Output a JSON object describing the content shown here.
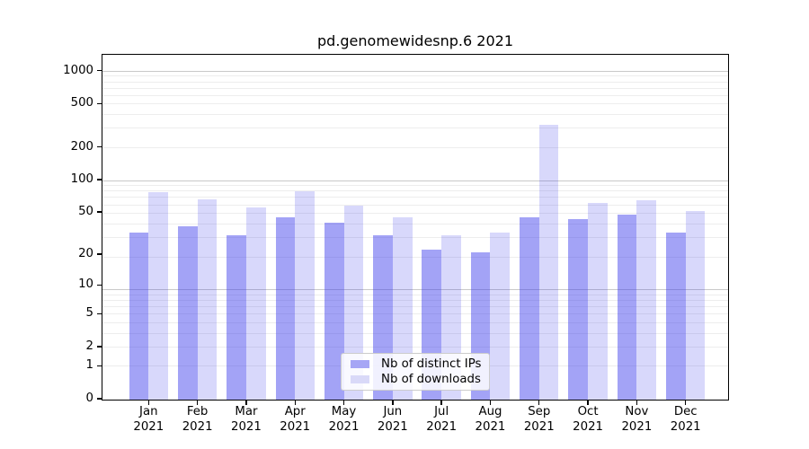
{
  "title": "pd.genomewidesnp.6 2021",
  "chart_data": {
    "type": "bar",
    "months": [
      "Jan",
      "Feb",
      "Mar",
      "Apr",
      "May",
      "Jun",
      "Jul",
      "Aug",
      "Sep",
      "Oct",
      "Nov",
      "Dec"
    ],
    "year": "2021",
    "categories": [
      "Jan 2021",
      "Feb 2021",
      "Mar 2021",
      "Apr 2021",
      "May 2021",
      "Jun 2021",
      "Jul 2021",
      "Aug 2021",
      "Sep 2021",
      "Oct 2021",
      "Nov 2021",
      "Dec 2021"
    ],
    "series": [
      {
        "name": "Nb of distinct IPs",
        "color": "#a6a6f5",
        "rgba": "rgba(60,60,235,0.47)",
        "values": [
          32,
          37,
          30,
          45,
          40,
          30,
          22,
          21,
          45,
          43,
          47,
          32
        ]
      },
      {
        "name": "Nb of downloads",
        "color": "#d9d9f8",
        "rgba": "rgba(60,60,235,0.20)",
        "values": [
          76,
          65,
          55,
          78,
          57,
          45,
          30,
          32,
          318,
          61,
          64,
          51
        ]
      }
    ],
    "yscale": "log10(value+1)",
    "ytick_labels": [
      0,
      1,
      2,
      5,
      10,
      20,
      50,
      100,
      200,
      500,
      1000
    ],
    "ylim": [
      0,
      1400
    ],
    "grid": "horizontal, major and minor",
    "legend_position": "lower center"
  },
  "colors": {
    "grid_minor": "#ededed",
    "grid_major": "#c9c9c9",
    "spine": "#000000",
    "legend_border": "#cccccc"
  }
}
